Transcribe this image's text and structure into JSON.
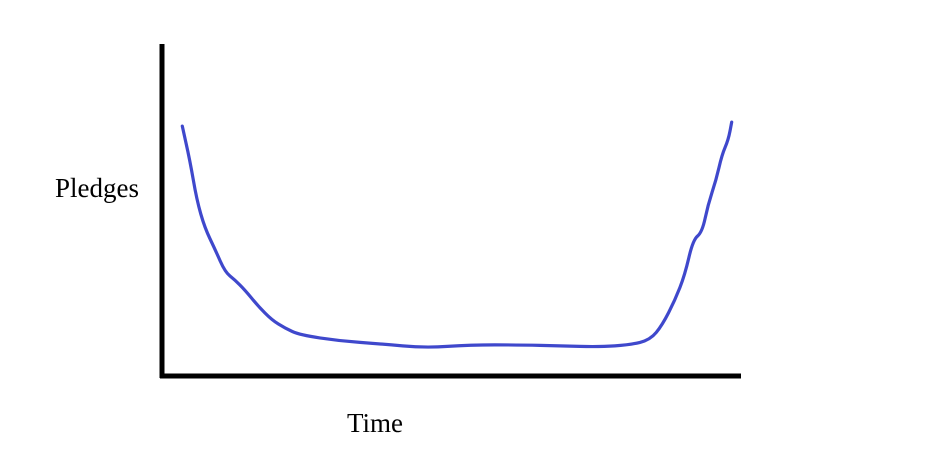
{
  "chart_data": {
    "type": "line",
    "title": "",
    "xlabel": "Time",
    "ylabel": "Pledges",
    "xlim": [
      0,
      100
    ],
    "ylim": [
      0,
      100
    ],
    "grid": false,
    "ticks": false,
    "line_color": "#3f48cc",
    "axis_color": "#000000",
    "series": [
      {
        "x": [
          3.5,
          4.8,
          6.0,
          7.4,
          9.2,
          10.9,
          12.6,
          14.3,
          16.6,
          19.0,
          21.2,
          23.8,
          30.7,
          37.7,
          45.4,
          53.2,
          61.8,
          68.7,
          75.6,
          80.8,
          84.3,
          86.4,
          88.6,
          90.3,
          91.7,
          93.3,
          94.3,
          95.7,
          96.7,
          97.8,
          98.4
        ],
        "y": [
          75.5,
          65.3,
          53.2,
          44.7,
          38.1,
          31.4,
          29.0,
          26.0,
          21.1,
          16.9,
          14.5,
          12.4,
          10.6,
          9.7,
          8.5,
          9.4,
          9.4,
          9.1,
          8.8,
          9.4,
          10.9,
          15.4,
          22.9,
          30.5,
          41.1,
          43.5,
          51.7,
          59.2,
          66.8,
          71.3,
          76.7
        ]
      }
    ]
  }
}
